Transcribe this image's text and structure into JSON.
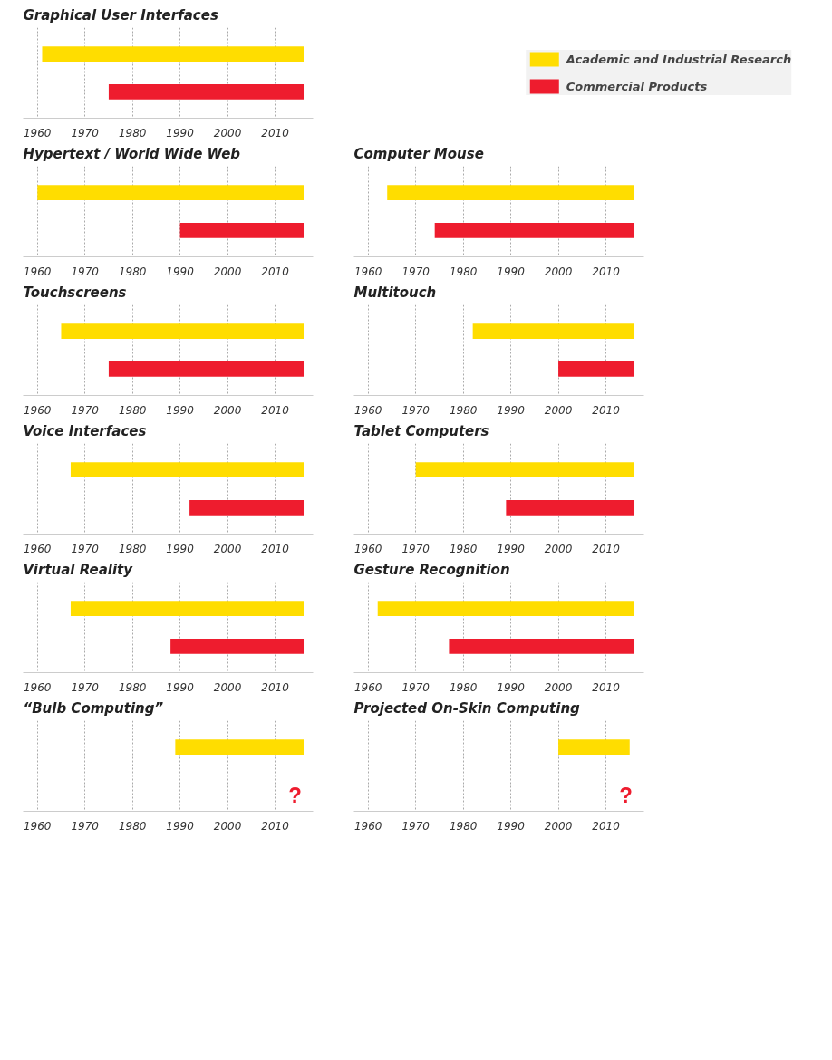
{
  "chart_data": [
    {
      "type": "bar",
      "orientation": "horizontal",
      "title": "Graphical User Interfaces",
      "categories": [
        null,
        null
      ],
      "series": [
        {
          "name": "Academic and Industrial Research",
          "color": "#ffdd00",
          "base": [
            1961,
            null
          ],
          "values": [
            55,
            null
          ]
        },
        {
          "name": "Commercial Products",
          "color": "#ee1c2e",
          "base": [
            null,
            1975
          ],
          "values": [
            null,
            41
          ]
        }
      ],
      "xlim": [
        1957,
        2018
      ],
      "xticks": [
        1960,
        1970,
        1980,
        1990,
        2000,
        2010
      ],
      "grid": "x",
      "tick_labels": "x",
      "legend": "right"
    },
    {
      "type": "bar",
      "orientation": "horizontal",
      "title": "Hypertext / World Wide Web",
      "categories": [
        null,
        null
      ],
      "series": [
        {
          "color": "#ffdd00",
          "base": [
            1960,
            null
          ],
          "values": [
            56,
            null
          ]
        },
        {
          "color": "#ee1c2e",
          "base": [
            null,
            1990
          ],
          "values": [
            null,
            26
          ]
        }
      ],
      "xlim": [
        1957,
        2018
      ],
      "xticks": [
        1960,
        1970,
        1980,
        1990,
        2000,
        2010
      ],
      "grid": "x",
      "tick_labels": "x"
    },
    {
      "type": "bar",
      "orientation": "horizontal",
      "title": "Computer Mouse",
      "categories": [
        null,
        null
      ],
      "series": [
        {
          "color": "#ffdd00",
          "base": [
            1964,
            null
          ],
          "values": [
            52,
            null
          ]
        },
        {
          "color": "#ee1c2e",
          "base": [
            null,
            1974
          ],
          "values": [
            null,
            42
          ]
        }
      ],
      "xlim": [
        1957,
        2018
      ],
      "xticks": [
        1960,
        1970,
        1980,
        1990,
        2000,
        2010
      ],
      "grid": "x",
      "tick_labels": "x"
    },
    {
      "type": "bar",
      "orientation": "horizontal",
      "title": "Touchscreens",
      "categories": [
        null,
        null
      ],
      "series": [
        {
          "color": "#ffdd00",
          "base": [
            1965,
            null
          ],
          "values": [
            51,
            null
          ]
        },
        {
          "color": "#ee1c2e",
          "base": [
            null,
            1975
          ],
          "values": [
            null,
            41
          ]
        }
      ],
      "xlim": [
        1957,
        2018
      ],
      "xticks": [
        1960,
        1970,
        1980,
        1990,
        2000,
        2010
      ],
      "grid": "x",
      "tick_labels": "x"
    },
    {
      "type": "bar",
      "orientation": "horizontal",
      "title": "Multitouch",
      "categories": [
        null,
        null
      ],
      "series": [
        {
          "color": "#ffdd00",
          "base": [
            1982,
            null
          ],
          "values": [
            34,
            null
          ]
        },
        {
          "color": "#ee1c2e",
          "base": [
            null,
            2000
          ],
          "values": [
            null,
            16
          ]
        }
      ],
      "xlim": [
        1957,
        2018
      ],
      "xticks": [
        1960,
        1970,
        1980,
        1990,
        2000,
        2010
      ],
      "grid": "x",
      "tick_labels": "x"
    },
    {
      "type": "bar",
      "orientation": "horizontal",
      "title": "Voice Interfaces",
      "categories": [
        null,
        null
      ],
      "series": [
        {
          "color": "#ffdd00",
          "base": [
            1967,
            null
          ],
          "values": [
            49,
            null
          ]
        },
        {
          "color": "#ee1c2e",
          "base": [
            null,
            1992
          ],
          "values": [
            null,
            24
          ]
        }
      ],
      "xlim": [
        1957,
        2018
      ],
      "xticks": [
        1960,
        1970,
        1980,
        1990,
        2000,
        2010
      ],
      "grid": "x",
      "tick_labels": "x"
    },
    {
      "type": "bar",
      "orientation": "horizontal",
      "title": "Tablet Computers",
      "categories": [
        null,
        null
      ],
      "series": [
        {
          "color": "#ffdd00",
          "base": [
            1970,
            null
          ],
          "values": [
            46,
            null
          ]
        },
        {
          "color": "#ee1c2e",
          "base": [
            null,
            1989
          ],
          "values": [
            null,
            27
          ]
        }
      ],
      "xlim": [
        1957,
        2018
      ],
      "xticks": [
        1960,
        1970,
        1980,
        1990,
        2000,
        2010
      ],
      "grid": "x",
      "tick_labels": "x"
    },
    {
      "type": "bar",
      "orientation": "horizontal",
      "title": "Virtual Reality",
      "categories": [
        null,
        null
      ],
      "series": [
        {
          "color": "#ffdd00",
          "base": [
            1967,
            null
          ],
          "values": [
            49,
            null
          ]
        },
        {
          "color": "#ee1c2e",
          "base": [
            null,
            1988
          ],
          "values": [
            null,
            28
          ]
        }
      ],
      "xlim": [
        1957,
        2018
      ],
      "xticks": [
        1960,
        1970,
        1980,
        1990,
        2000,
        2010
      ],
      "grid": "x",
      "tick_labels": "x"
    },
    {
      "type": "bar",
      "orientation": "horizontal",
      "title": "Gesture Recognition",
      "categories": [
        null,
        null
      ],
      "series": [
        {
          "color": "#ffdd00",
          "base": [
            1962,
            null
          ],
          "values": [
            54,
            null
          ]
        },
        {
          "color": "#ee1c2e",
          "base": [
            null,
            1977
          ],
          "values": [
            null,
            39
          ]
        }
      ],
      "xlim": [
        1957,
        2018
      ],
      "xticks": [
        1960,
        1970,
        1980,
        1990,
        2000,
        2010
      ],
      "grid": "x",
      "tick_labels": "x"
    },
    {
      "type": "bar",
      "orientation": "horizontal",
      "title": "“Bulb Computing”",
      "categories": [
        null,
        null
      ],
      "series": [
        {
          "color": "#ffdd00",
          "base": [
            1989,
            null
          ],
          "values": [
            27,
            null
          ]
        }
      ],
      "annotations": [
        "?"
      ],
      "xlim": [
        1957,
        2018
      ],
      "xticks": [
        1960,
        1970,
        1980,
        1990,
        2000,
        2010
      ],
      "grid": "x",
      "tick_labels": "x"
    },
    {
      "type": "bar",
      "orientation": "horizontal",
      "title": "Projected On-Skin Computing",
      "categories": [
        null,
        null
      ],
      "series": [
        {
          "color": "#ffdd00",
          "base": [
            2000,
            null
          ],
          "values": [
            15,
            null
          ]
        }
      ],
      "annotations": [
        "?"
      ],
      "xlim": [
        1957,
        2018
      ],
      "xticks": [
        1960,
        1970,
        1980,
        1990,
        2000,
        2010
      ],
      "grid": "x",
      "tick_labels": "x"
    }
  ]
}
